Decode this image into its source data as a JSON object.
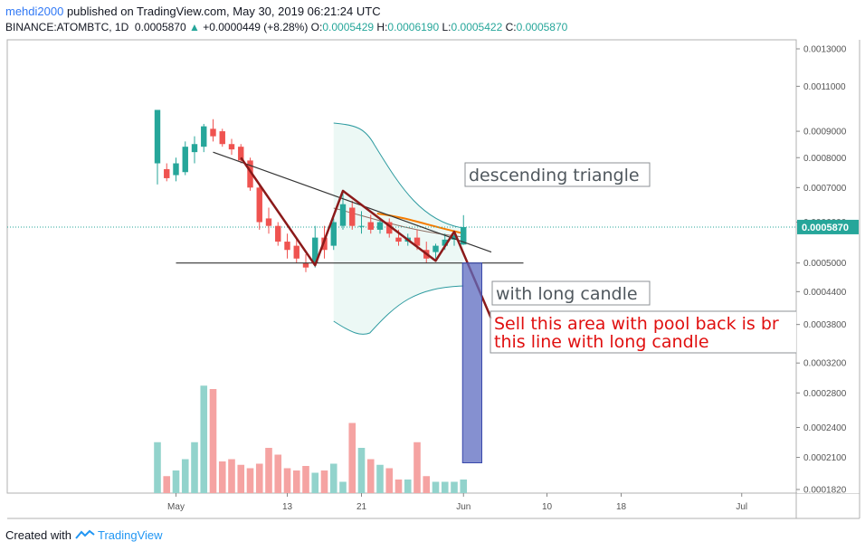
{
  "header": {
    "user": "mehdi2000",
    "published_text": "published on TradingView.com, May 30, 2019 06:21:24 UTC",
    "symbol": "BINANCE:ATOMBTC, 1D",
    "last": "0.0005870",
    "arrow": "▲",
    "change": "+0.0000449 (+8.28%)",
    "o_label": "O:",
    "o_value": "0.0005429",
    "h_label": "H:",
    "h_value": "0.0006190",
    "l_label": "L:",
    "l_value": "0.0005422",
    "c_label": "C:",
    "c_value": "0.0005870"
  },
  "footer": {
    "created_with": "Created with",
    "brand": "TradingView"
  },
  "colors": {
    "up": "#26a69a",
    "down": "#ef5350",
    "vol_up": "#92d3cc",
    "vol_down": "#f5a3a2",
    "bb_fill": "#e6f5f2",
    "bb_line": "#2e9ba0",
    "ma_orange": "#f57c00",
    "ma_brown": "#8d6e63",
    "pattern": "#8b1a1a",
    "trendline": "#333333",
    "sell_box": "#5c6bc0",
    "annot_red": "#e01010",
    "annot_gray": "#50585e"
  },
  "annotations": {
    "descending": "descending triangle",
    "long_candle": "with long candle",
    "sell_line1": "Sell this area with pool back is br",
    "sell_line2": "this line with long candle"
  },
  "chart_data": {
    "type": "candlestick",
    "symbol": "ATOMBTC",
    "timeframe": "1D",
    "y_scale": "log",
    "y_ticks": [
      "0.0013000",
      "0.0011000",
      "0.0009000",
      "0.0008000",
      "0.0007000",
      "0.0006000",
      "0.0005000",
      "0.0004400",
      "0.0003800",
      "0.0003200",
      "0.0002800",
      "0.0002400",
      "0.0002100",
      "0.0001820"
    ],
    "last_price_label": "0.0005870",
    "x_ticks": [
      "May",
      "13",
      "21",
      "Jun",
      "10",
      "18",
      "Jul"
    ],
    "candles": [
      {
        "date": "2019-04-29",
        "o": 0.00078,
        "h": 0.00099,
        "l": 0.00071,
        "c": 0.00099
      },
      {
        "date": "2019-04-30",
        "o": 0.00076,
        "h": 0.00078,
        "l": 0.00072,
        "c": 0.00073
      },
      {
        "date": "2019-05-01",
        "o": 0.00074,
        "h": 0.0008,
        "l": 0.00072,
        "c": 0.00078
      },
      {
        "date": "2019-05-02",
        "o": 0.00075,
        "h": 0.00086,
        "l": 0.00074,
        "c": 0.00084
      },
      {
        "date": "2019-05-03",
        "o": 0.00082,
        "h": 0.00088,
        "l": 0.00078,
        "c": 0.00085
      },
      {
        "date": "2019-05-04",
        "o": 0.00084,
        "h": 0.00093,
        "l": 0.00082,
        "c": 0.00092
      },
      {
        "date": "2019-05-05",
        "o": 0.00091,
        "h": 0.00095,
        "l": 0.00086,
        "c": 0.00088
      },
      {
        "date": "2019-05-06",
        "o": 0.0009,
        "h": 0.00091,
        "l": 0.00084,
        "c": 0.00085
      },
      {
        "date": "2019-05-07",
        "o": 0.00085,
        "h": 0.00087,
        "l": 0.00081,
        "c": 0.00083
      },
      {
        "date": "2019-05-08",
        "o": 0.00084,
        "h": 0.00085,
        "l": 0.00078,
        "c": 0.00079
      },
      {
        "date": "2019-05-09",
        "o": 0.00079,
        "h": 0.0008,
        "l": 0.00069,
        "c": 0.0007
      },
      {
        "date": "2019-05-10",
        "o": 0.0007,
        "h": 0.00071,
        "l": 0.00058,
        "c": 0.0006
      },
      {
        "date": "2019-05-11",
        "o": 0.00061,
        "h": 0.00064,
        "l": 0.00057,
        "c": 0.00059
      },
      {
        "date": "2019-05-12",
        "o": 0.00059,
        "h": 0.0006,
        "l": 0.00054,
        "c": 0.00055
      },
      {
        "date": "2019-05-13",
        "o": 0.00055,
        "h": 0.00057,
        "l": 0.00051,
        "c": 0.00053
      },
      {
        "date": "2019-05-14",
        "o": 0.00054,
        "h": 0.00056,
        "l": 0.0005,
        "c": 0.00051
      },
      {
        "date": "2019-05-15",
        "o": 0.0005,
        "h": 0.00052,
        "l": 0.00048,
        "c": 0.00049
      },
      {
        "date": "2019-05-16",
        "o": 0.0005,
        "h": 0.00059,
        "l": 0.00049,
        "c": 0.00056
      },
      {
        "date": "2019-05-17",
        "o": 0.00056,
        "h": 0.00059,
        "l": 0.00051,
        "c": 0.00053
      },
      {
        "date": "2019-05-18",
        "o": 0.00054,
        "h": 0.00061,
        "l": 0.00053,
        "c": 0.0006
      },
      {
        "date": "2019-05-19",
        "o": 0.00059,
        "h": 0.00069,
        "l": 0.00058,
        "c": 0.00065
      },
      {
        "date": "2019-05-20",
        "o": 0.00064,
        "h": 0.00066,
        "l": 0.00058,
        "c": 0.00059
      },
      {
        "date": "2019-05-21",
        "o": 0.00059,
        "h": 0.00063,
        "l": 0.00057,
        "c": 0.00059
      },
      {
        "date": "2019-05-22",
        "o": 0.0006,
        "h": 0.00062,
        "l": 0.00057,
        "c": 0.00058
      },
      {
        "date": "2019-05-23",
        "o": 0.00058,
        "h": 0.00061,
        "l": 0.00057,
        "c": 0.0006
      },
      {
        "date": "2019-05-24",
        "o": 0.0006,
        "h": 0.00061,
        "l": 0.00056,
        "c": 0.00057
      },
      {
        "date": "2019-05-25",
        "o": 0.00056,
        "h": 0.00058,
        "l": 0.00054,
        "c": 0.00055
      },
      {
        "date": "2019-05-26",
        "o": 0.00055,
        "h": 0.00057,
        "l": 0.00054,
        "c": 0.00056
      },
      {
        "date": "2019-05-27",
        "o": 0.00056,
        "h": 0.00058,
        "l": 0.00053,
        "c": 0.00054
      },
      {
        "date": "2019-05-28",
        "o": 0.00053,
        "h": 0.00055,
        "l": 0.0005,
        "c": 0.00051
      },
      {
        "date": "2019-05-29",
        "o": 0.000525,
        "h": 0.000545,
        "l": 0.00051,
        "c": 0.00054
      },
      {
        "date": "2019-05-30",
        "o": 0.00054,
        "h": 0.00057,
        "l": 0.00053,
        "c": 0.000555
      },
      {
        "date": "2019-05-31",
        "o": 0.000555,
        "h": 0.000575,
        "l": 0.00054,
        "c": 0.000565
      },
      {
        "date": "2019-06-01",
        "o": 0.0005429,
        "h": 0.000619,
        "l": 0.0005422,
        "c": 0.000587
      }
    ],
    "volume_relative": [
      0.45,
      0.15,
      0.2,
      0.3,
      0.45,
      0.95,
      0.92,
      0.28,
      0.3,
      0.25,
      0.22,
      0.26,
      0.4,
      0.34,
      0.22,
      0.2,
      0.24,
      0.18,
      0.2,
      0.26,
      0.1,
      0.62,
      0.4,
      0.3,
      0.25,
      0.22,
      0.12,
      0.12,
      0.45,
      0.15,
      0.1,
      0.1,
      0.1,
      0.12
    ],
    "bollinger_window": {
      "start": "2019-05-18",
      "end": "2019-06-01"
    },
    "trendline_upper": {
      "from": {
        "date": "2019-05-05",
        "price": 0.00082
      },
      "to": {
        "date": "2019-06-04",
        "price": 0.000525
      }
    },
    "support_line": {
      "from": {
        "date": "2019-05-01",
        "price": 0.0005
      },
      "to": {
        "date": "2019-06-06",
        "price": 0.0005
      }
    },
    "pattern_points": [
      {
        "date": "2019-05-08",
        "price": 0.0008
      },
      {
        "date": "2019-05-16",
        "price": 0.000495
      },
      {
        "date": "2019-05-19",
        "price": 0.00069
      },
      {
        "date": "2019-05-29",
        "price": 0.000505
      },
      {
        "date": "2019-05-31",
        "price": 0.000575
      },
      {
        "date": "2019-06-04",
        "price": 0.00039
      }
    ],
    "sell_zone": {
      "from_date": "2019-06-01",
      "to_date": "2019-06-02",
      "price_top": 0.0005,
      "price_bottom": 0.000205
    }
  }
}
